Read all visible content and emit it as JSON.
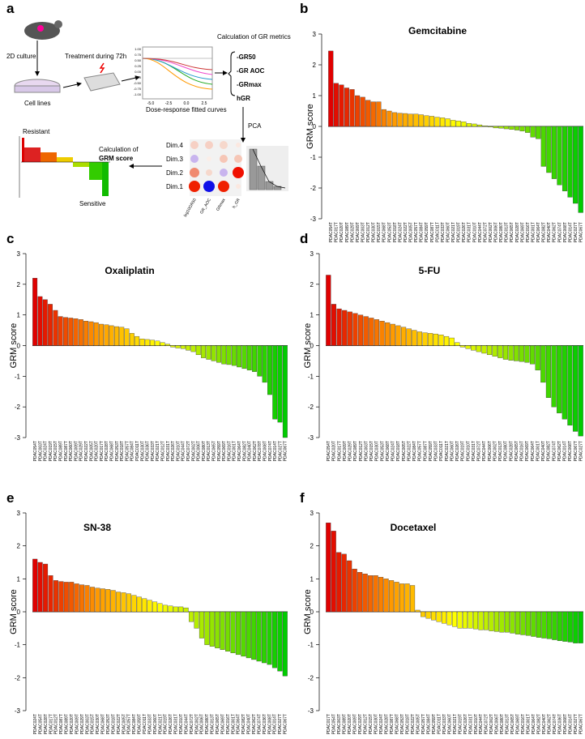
{
  "panel_labels": [
    "a",
    "b",
    "c",
    "d",
    "e",
    "f"
  ],
  "diagram": {
    "culture": "2D culture",
    "treatment": "Treatment during 72h",
    "cell_lines": "Cell lines",
    "curves_caption": "Dose-response fitted curves",
    "curve_xticks": [
      "-5.0",
      "-2.5",
      "0.0",
      "2.5"
    ],
    "curve_yticks": [
      "1.00",
      "0.75",
      "0.50",
      "0.25",
      "0.00",
      "-0.25",
      "-0.50",
      "-0.75",
      "-1.00"
    ],
    "gr_metrics_title": "Calculation of GR metrics",
    "metrics": [
      "-GR50",
      "-GR AOC",
      "-GRmax",
      "hGR"
    ],
    "pca": "PCA",
    "grm_calc": [
      "Calculation of",
      "GRM score"
    ],
    "resistant": "Resistant",
    "sensitive": "Sensitive",
    "dims": [
      "Dim.4",
      "Dim.3",
      "Dim.2",
      "Dim.1"
    ],
    "variables": [
      "log10GR50",
      "GR_AOC",
      "GRmax",
      "h_GR"
    ]
  },
  "chart_data": [
    {
      "type": "bar",
      "title": "Gemcitabine",
      "y_label": "GRM score",
      "color_scale": [
        "#e00000",
        "#ff9900",
        "#ffff00",
        "#80e000",
        "#00cc00"
      ],
      "ylim": [
        -3,
        3
      ],
      "yticks": [
        -3,
        -2,
        -1,
        0,
        1,
        2,
        3
      ],
      "categories": [
        "PDAC054T",
        "PDAC017T",
        "PDAC020T",
        "PDAC089T",
        "PDAC029T",
        "PDAC009T",
        "PDAC003T",
        "PDAC012T",
        "PDAC030T",
        "PDAC015T",
        "PDAC068T",
        "PDAC053T",
        "PDAC018T",
        "PDAC024T",
        "PDAC022T",
        "PDAC005T",
        "PDAC057T",
        "PDAC084T",
        "PDAC059T",
        "PDAC087T",
        "PDAC011T",
        "PDAC033T",
        "PDAC060T",
        "PDAC021T",
        "PDAC019T",
        "PDAC026T",
        "PDAC031T",
        "PDAC010T",
        "PDAC044T",
        "PDAC072T",
        "PDAC002T",
        "PDAC006T",
        "PDAC080T",
        "PDAC013T",
        "PDAC065T",
        "PDAC028T",
        "PDAC069T",
        "PDAC016T",
        "PDAC001T",
        "PDAC064T",
        "PDAC082T",
        "PDAC040T",
        "PDAC062T",
        "PDAC074T",
        "PDAC008T",
        "PDAC014T",
        "PDAC027T",
        "PDAC067T"
      ],
      "values": [
        2.45,
        1.4,
        1.35,
        1.25,
        1.2,
        1.0,
        0.95,
        0.85,
        0.8,
        0.8,
        0.55,
        0.5,
        0.45,
        0.43,
        0.42,
        0.4,
        0.4,
        0.38,
        0.35,
        0.33,
        0.3,
        0.28,
        0.25,
        0.2,
        0.18,
        0.15,
        0.1,
        0.08,
        0.05,
        0.02,
        -0.02,
        -0.05,
        -0.06,
        -0.08,
        -0.1,
        -0.12,
        -0.15,
        -0.2,
        -0.35,
        -0.4,
        -1.3,
        -1.5,
        -1.7,
        -1.9,
        -2.1,
        -2.3,
        -2.5,
        -2.8
      ]
    },
    {
      "type": "bar",
      "title": "Oxaliplatin",
      "y_label": "GRM score",
      "color_scale": [
        "#e00000",
        "#ff9900",
        "#ffff00",
        "#80e000",
        "#00cc00"
      ],
      "ylim": [
        -3,
        3
      ],
      "yticks": [
        -3,
        -2,
        -1,
        0,
        1,
        2,
        3
      ],
      "categories": [
        "PDAC054T",
        "PDAC003T",
        "PDAC024T",
        "PDAC019T",
        "PDAC015T",
        "PDAC089T",
        "PDAC087T",
        "PDAC060T",
        "PDAC009T",
        "PDAC029T",
        "PDAC022T",
        "PDAC005T",
        "PDAC020T",
        "PDAC017T",
        "PDAC028T",
        "PDAC068T",
        "PDAC053T",
        "PDAC018T",
        "PDAC057T",
        "PDAC084T",
        "PDAC011T",
        "PDAC030T",
        "PDAC036T",
        "PDAC033T",
        "PDAC021T",
        "PDAC012T",
        "PDAC031T",
        "PDAC026T",
        "PDAC010T",
        "PDAC044T",
        "PDAC072T",
        "PDAC002T",
        "PDAC006T",
        "PDAC080T",
        "PDAC013T",
        "PDAC065T",
        "PDAC059T",
        "PDAC069T",
        "PDAC016T",
        "PDAC001T",
        "PDAC064T",
        "PDAC082T",
        "PDAC040T",
        "PDAC062T",
        "PDAC078T",
        "PDAC008T",
        "PDAC074T",
        "PDAC014T",
        "PDAC027T",
        "PDAC067T"
      ],
      "values": [
        2.2,
        1.6,
        1.5,
        1.35,
        1.15,
        0.95,
        0.92,
        0.9,
        0.88,
        0.85,
        0.8,
        0.78,
        0.75,
        0.7,
        0.68,
        0.65,
        0.62,
        0.6,
        0.55,
        0.4,
        0.3,
        0.22,
        0.2,
        0.18,
        0.15,
        0.1,
        0.05,
        -0.05,
        -0.08,
        -0.1,
        -0.15,
        -0.2,
        -0.3,
        -0.4,
        -0.45,
        -0.5,
        -0.55,
        -0.6,
        -0.62,
        -0.65,
        -0.7,
        -0.75,
        -0.8,
        -0.85,
        -1.0,
        -1.2,
        -1.6,
        -2.4,
        -2.5,
        -3.0
      ]
    },
    {
      "type": "bar",
      "title": "5-FU",
      "y_label": "GRM score",
      "color_scale": [
        "#e00000",
        "#ff9900",
        "#ffff00",
        "#80e000",
        "#00cc00"
      ],
      "ylim": [
        -3,
        3
      ],
      "yticks": [
        -3,
        -2,
        -1,
        0,
        1,
        2,
        3
      ],
      "categories": [
        "PDAC054T",
        "PDAC020T",
        "PDAC017T",
        "PDAC009T",
        "PDAC029T",
        "PDAC089T",
        "PDAC012T",
        "PDAC003T",
        "PDAC015T",
        "PDAC030T",
        "PDAC053T",
        "PDAC068T",
        "PDAC024T",
        "PDAC018T",
        "PDAC005T",
        "PDAC022T",
        "PDAC084T",
        "PDAC057T",
        "PDAC087T",
        "PDAC059T",
        "PDAC033T",
        "PDAC011T",
        "PDAC021T",
        "PDAC060T",
        "PDAC026T",
        "PDAC019T",
        "PDAC010T",
        "PDAC031T",
        "PDAC072T",
        "PDAC044T",
        "PDAC006T",
        "PDAC002T",
        "PDAC013T",
        "PDAC080T",
        "PDAC028T",
        "PDAC065T",
        "PDAC016T",
        "PDAC069T",
        "PDAC064T",
        "PDAC001T",
        "PDAC040T",
        "PDAC082T",
        "PDAC074T",
        "PDAC062T",
        "PDAC014T",
        "PDAC008T",
        "PDAC067T",
        "PDAC027T"
      ],
      "values": [
        2.3,
        1.35,
        1.2,
        1.15,
        1.1,
        1.05,
        1.0,
        0.95,
        0.9,
        0.85,
        0.8,
        0.75,
        0.7,
        0.65,
        0.6,
        0.55,
        0.5,
        0.45,
        0.42,
        0.4,
        0.38,
        0.35,
        0.3,
        0.25,
        0.1,
        -0.05,
        -0.1,
        -0.15,
        -0.2,
        -0.25,
        -0.3,
        -0.35,
        -0.4,
        -0.45,
        -0.48,
        -0.5,
        -0.52,
        -0.55,
        -0.6,
        -0.8,
        -1.2,
        -1.7,
        -2.0,
        -2.2,
        -2.4,
        -2.6,
        -2.8,
        -2.95
      ]
    },
    {
      "type": "bar",
      "title": "SN-38",
      "y_label": "GRM score",
      "color_scale": [
        "#e00000",
        "#ff9900",
        "#ffff00",
        "#80e000",
        "#00cc00"
      ],
      "ylim": [
        -3,
        3
      ],
      "yticks": [
        -3,
        -2,
        -1,
        0,
        1,
        2,
        3
      ],
      "categories": [
        "PDAC024T",
        "PDAC054T",
        "PDAC028T",
        "PDAC017T",
        "PDAC012T",
        "PDAC087T",
        "PDAC089T",
        "PDAC020T",
        "PDAC009T",
        "PDAC029T",
        "PDAC003T",
        "PDAC015T",
        "PDAC030T",
        "PDAC068T",
        "PDAC053T",
        "PDAC018T",
        "PDAC022T",
        "PDAC005T",
        "PDAC057T",
        "PDAC084T",
        "PDAC059T",
        "PDAC011T",
        "PDAC033T",
        "PDAC060T",
        "PDAC021T",
        "PDAC019T",
        "PDAC026T",
        "PDAC031T",
        "PDAC010T",
        "PDAC044T",
        "PDAC072T",
        "PDAC002T",
        "PDAC006T",
        "PDAC080T",
        "PDAC013T",
        "PDAC065T",
        "PDAC069T",
        "PDAC016T",
        "PDAC001T",
        "PDAC064T",
        "PDAC082T",
        "PDAC040T",
        "PDAC062T",
        "PDAC074T",
        "PDAC036T",
        "PDAC008T",
        "PDAC014T",
        "PDAC027T",
        "PDAC067T"
      ],
      "values": [
        1.6,
        1.5,
        1.45,
        1.1,
        0.95,
        0.92,
        0.9,
        0.9,
        0.85,
        0.82,
        0.8,
        0.75,
        0.72,
        0.7,
        0.68,
        0.65,
        0.6,
        0.58,
        0.55,
        0.5,
        0.45,
        0.4,
        0.35,
        0.3,
        0.25,
        0.2,
        0.18,
        0.15,
        0.15,
        0.12,
        -0.3,
        -0.5,
        -0.8,
        -1.0,
        -1.05,
        -1.1,
        -1.15,
        -1.2,
        -1.25,
        -1.3,
        -1.35,
        -1.4,
        -1.45,
        -1.5,
        -1.55,
        -1.6,
        -1.7,
        -1.8,
        -1.95
      ]
    },
    {
      "type": "bar",
      "title": "Docetaxel",
      "y_label": "GRM score",
      "color_scale": [
        "#e00000",
        "#ff9900",
        "#ffff00",
        "#80e000",
        "#00cc00"
      ],
      "ylim": [
        -3,
        3
      ],
      "yticks": [
        -3,
        -2,
        -1,
        0,
        1,
        2,
        3
      ],
      "categories": [
        "PDAC017T",
        "PDAC054T",
        "PDAC003T",
        "PDAC089T",
        "PDAC020T",
        "PDAC009T",
        "PDAC029T",
        "PDAC012T",
        "PDAC015T",
        "PDAC030T",
        "PDAC024T",
        "PDAC028T",
        "PDAC087T",
        "PDAC068T",
        "PDAC053T",
        "PDAC018T",
        "PDAC022T",
        "PDAC005T",
        "PDAC057T",
        "PDAC084T",
        "PDAC059T",
        "PDAC011T",
        "PDAC033T",
        "PDAC060T",
        "PDAC021T",
        "PDAC019T",
        "PDAC026T",
        "PDAC031T",
        "PDAC010T",
        "PDAC044T",
        "PDAC072T",
        "PDAC002T",
        "PDAC006T",
        "PDAC080T",
        "PDAC013T",
        "PDAC065T",
        "PDAC069T",
        "PDAC016T",
        "PDAC001T",
        "PDAC064T",
        "PDAC082T",
        "PDAC040T",
        "PDAC062T",
        "PDAC074T",
        "PDAC036T",
        "PDAC008T",
        "PDAC014T",
        "PDAC027T",
        "PDAC067T"
      ],
      "values": [
        2.7,
        2.45,
        1.8,
        1.75,
        1.55,
        1.3,
        1.2,
        1.15,
        1.1,
        1.1,
        1.05,
        1.0,
        0.95,
        0.9,
        0.85,
        0.85,
        0.8,
        0.05,
        -0.15,
        -0.2,
        -0.25,
        -0.3,
        -0.35,
        -0.4,
        -0.45,
        -0.5,
        -0.5,
        -0.5,
        -0.52,
        -0.55,
        -0.55,
        -0.58,
        -0.6,
        -0.62,
        -0.62,
        -0.65,
        -0.68,
        -0.7,
        -0.72,
        -0.75,
        -0.78,
        -0.8,
        -0.82,
        -0.85,
        -0.88,
        -0.9,
        -0.92,
        -0.95,
        -0.95
      ]
    }
  ]
}
